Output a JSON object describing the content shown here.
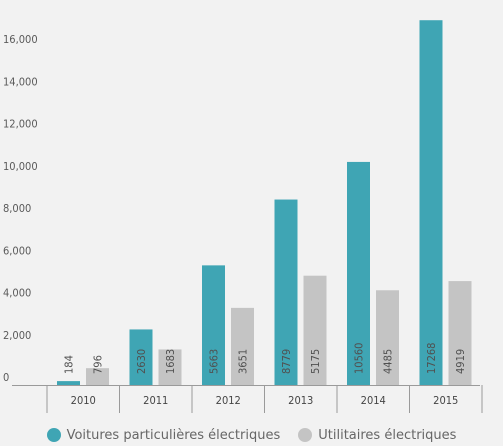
{
  "colors": {
    "series1": "#3fa5b4",
    "series2": "#c4c4c4",
    "axis": "#9a9a9a",
    "text": "#5a5a5a"
  },
  "chart_data": {
    "type": "bar",
    "categories": [
      "2010",
      "2011",
      "2012",
      "2013",
      "2014",
      "2015"
    ],
    "series": [
      {
        "name": "Voitures particulières électriques",
        "values": [
          184,
          2630,
          5663,
          8779,
          10560,
          17268
        ]
      },
      {
        "name": "Utilitaires électriques",
        "values": [
          796,
          1683,
          3651,
          5175,
          4485,
          4919
        ]
      }
    ],
    "data_labels": [
      [
        "184",
        "2630",
        "5663",
        "8779",
        "10560",
        "17268"
      ],
      [
        "796",
        "1683",
        "3651",
        "5175",
        "4485",
        "4919"
      ]
    ],
    "title": "",
    "xlabel": "",
    "ylabel": "",
    "ylim": [
      0,
      17000
    ],
    "yticks": [
      0,
      2000,
      4000,
      6000,
      8000,
      10000,
      12000,
      14000,
      16000
    ],
    "ytick_labels": [
      "0",
      "2,000",
      "4,000",
      "6,000",
      "8,000",
      "10,000",
      "12,000",
      "14,000",
      "16,000"
    ],
    "grid": false,
    "legend": "bottom"
  }
}
